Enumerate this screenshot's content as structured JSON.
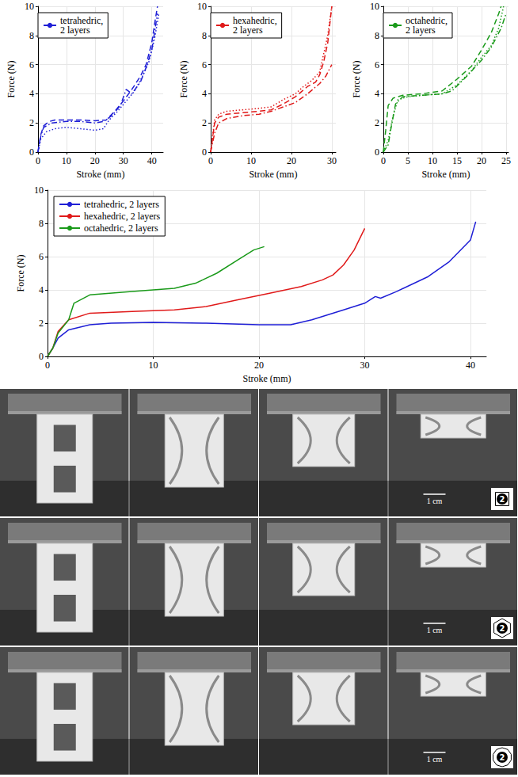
{
  "chart_data": [
    {
      "type": "line",
      "x_label": "Stroke (mm)",
      "y_label": "Force (N)",
      "xlim": [
        0,
        44
      ],
      "xticks": [
        0,
        10,
        20,
        30,
        40
      ],
      "ylim": [
        0,
        10
      ],
      "yticks": [
        0,
        2,
        4,
        6,
        8,
        10
      ],
      "grid": true,
      "legend": "upper left",
      "series": [
        {
          "name": "tetrahedric, 2 layers",
          "color": "#1f1fd6",
          "line_style": "dashed",
          "x": [
            0,
            1,
            2,
            4,
            6,
            10,
            15,
            20,
            24,
            27,
            30,
            33,
            36,
            38,
            40,
            41,
            42
          ],
          "values": [
            0,
            1.2,
            1.8,
            2.1,
            2.2,
            2.2,
            2.2,
            2.15,
            2.2,
            2.8,
            3.5,
            4.3,
            5.2,
            6.0,
            7.5,
            8.8,
            10
          ]
        },
        {
          "name": "tetrahedric, 2 layers",
          "color": "#1f1fd6",
          "line_style": "dashdot",
          "x": [
            0,
            1,
            2,
            5,
            10,
            15,
            20,
            23,
            26,
            29,
            31,
            33,
            36,
            38,
            40,
            42
          ],
          "values": [
            0,
            1.1,
            1.7,
            2.0,
            2.1,
            2.1,
            2.0,
            2.1,
            2.5,
            3.2,
            4.3,
            4.0,
            4.8,
            5.8,
            7.0,
            9.5
          ]
        },
        {
          "name": "tetrahedric, 2 layers",
          "color": "#1f1fd6",
          "line_style": "dotted",
          "x": [
            0,
            1,
            3,
            6,
            10,
            15,
            20,
            23,
            25,
            28,
            31,
            34,
            37,
            39,
            41,
            42.5
          ],
          "values": [
            0,
            0.9,
            1.4,
            1.6,
            1.7,
            1.6,
            1.5,
            1.6,
            2.2,
            2.8,
            3.5,
            4.2,
            5.3,
            6.2,
            7.8,
            9.5
          ]
        }
      ]
    },
    {
      "type": "line",
      "x_label": "Stroke (mm)",
      "y_label": "Force (N)",
      "xlim": [
        0,
        31
      ],
      "xticks": [
        0,
        10,
        20,
        30
      ],
      "ylim": [
        0,
        10
      ],
      "yticks": [
        0,
        2,
        4,
        6,
        8,
        10
      ],
      "grid": true,
      "legend": "upper left",
      "series": [
        {
          "name": "hexahedric, 2 layers",
          "color": "#e01a1a",
          "line_style": "dashed",
          "x": [
            0,
            0.5,
            1,
            2,
            4,
            8,
            12,
            15,
            18,
            21,
            24,
            26,
            27,
            28,
            29,
            30
          ],
          "values": [
            0,
            1.0,
            2.0,
            2.4,
            2.6,
            2.7,
            2.8,
            2.9,
            3.3,
            3.8,
            4.5,
            4.8,
            5.3,
            6.2,
            7.5,
            10
          ]
        },
        {
          "name": "hexahedric, 2 layers",
          "color": "#e01a1a",
          "line_style": "dotted",
          "x": [
            0,
            1,
            2,
            4,
            8,
            12,
            15,
            18,
            21,
            23,
            25,
            27,
            29,
            30
          ],
          "values": [
            0,
            2.2,
            2.6,
            2.8,
            2.9,
            3.0,
            3.1,
            3.6,
            4.0,
            4.5,
            4.9,
            5.5,
            8.0,
            10
          ]
        },
        {
          "name": "hexahedric, 2 layers",
          "color": "#e01a1a",
          "line_style": "dashdot",
          "x": [
            0,
            1,
            2,
            4,
            8,
            12,
            15,
            18,
            21,
            24,
            27,
            28.5,
            30
          ],
          "values": [
            0,
            1.3,
            2.0,
            2.3,
            2.5,
            2.6,
            2.8,
            3.1,
            3.4,
            4.0,
            4.7,
            5.2,
            6.0
          ]
        }
      ]
    },
    {
      "type": "line",
      "x_label": "Stroke (mm)",
      "y_label": "Force (N)",
      "xlim": [
        0,
        25.5
      ],
      "xticks": [
        0,
        5,
        10,
        15,
        20,
        25
      ],
      "ylim": [
        0,
        10
      ],
      "yticks": [
        0,
        2,
        4,
        6,
        8,
        10
      ],
      "grid": true,
      "legend": "upper left",
      "series": [
        {
          "name": "octahedric, 2 layers",
          "color": "#1a9a1a",
          "line_style": "dashed",
          "x": [
            0,
            0.5,
            1,
            2,
            4,
            8,
            12,
            15,
            18,
            20,
            22,
            23.5,
            24
          ],
          "values": [
            0,
            1.5,
            3.2,
            3.7,
            3.9,
            4.0,
            4.2,
            5.0,
            5.9,
            7.0,
            8.2,
            9.5,
            10
          ]
        },
        {
          "name": "octahedric, 2 layers",
          "color": "#1a9a1a",
          "line_style": "dotted",
          "x": [
            0,
            1,
            2,
            3,
            5,
            8,
            12,
            15,
            18,
            20,
            22,
            23.5,
            24.5
          ],
          "values": [
            0,
            0.8,
            2.5,
            3.6,
            3.8,
            3.9,
            4.0,
            4.6,
            5.6,
            6.5,
            7.3,
            8.5,
            10
          ]
        },
        {
          "name": "octahedric, 2 layers",
          "color": "#1a9a1a",
          "line_style": "dashdot",
          "x": [
            0,
            1,
            1.5,
            2.5,
            4,
            8,
            12,
            14,
            17,
            20,
            22,
            24,
            25
          ],
          "values": [
            0,
            0.5,
            1.5,
            3.3,
            3.8,
            3.9,
            4.0,
            4.2,
            5.2,
            6.3,
            7.2,
            8.5,
            9.5
          ]
        }
      ]
    },
    {
      "type": "line",
      "x_label": "Stroke (mm)",
      "y_label": "Force (N)",
      "xlim": [
        0,
        41.5
      ],
      "xticks": [
        0,
        10,
        20,
        30,
        40
      ],
      "ylim": [
        0,
        10
      ],
      "yticks": [
        0,
        2,
        4,
        6,
        8,
        10
      ],
      "grid": true,
      "legend": "upper left",
      "series": [
        {
          "name": "tetrahedric, 2 layers",
          "color": "#1f1fd6",
          "line_style": "solid",
          "x": [
            0,
            0.5,
            1,
            2,
            4,
            6,
            10,
            15,
            20,
            23,
            25,
            28,
            30,
            31,
            31.5,
            33,
            36,
            38,
            40,
            40.5
          ],
          "values": [
            0,
            0.5,
            1.1,
            1.6,
            1.9,
            2.0,
            2.05,
            2.0,
            1.9,
            1.9,
            2.2,
            2.8,
            3.2,
            3.6,
            3.5,
            3.9,
            4.8,
            5.7,
            7.0,
            8.1
          ]
        },
        {
          "name": "hexahedric, 2 layers",
          "color": "#e01a1a",
          "line_style": "solid",
          "x": [
            0,
            0.5,
            1,
            2,
            4,
            8,
            12,
            15,
            18,
            21,
            24,
            26,
            27,
            28,
            29,
            30
          ],
          "values": [
            0,
            0.5,
            1.5,
            2.2,
            2.6,
            2.7,
            2.8,
            3.0,
            3.4,
            3.8,
            4.2,
            4.6,
            4.9,
            5.5,
            6.4,
            7.7
          ]
        },
        {
          "name": "octahedric, 2 layers",
          "color": "#1a9a1a",
          "line_style": "solid",
          "x": [
            0,
            0.5,
            1,
            2,
            2.5,
            4,
            8,
            12,
            14,
            16,
            18,
            19.5,
            20.5
          ],
          "values": [
            0,
            0.5,
            1.4,
            2.2,
            3.2,
            3.7,
            3.9,
            4.1,
            4.4,
            5.0,
            5.8,
            6.4,
            6.6
          ]
        }
      ]
    }
  ],
  "photo_panel": {
    "rows": [
      {
        "scale_bar": "1 cm",
        "icon_label": "2"
      },
      {
        "scale_bar": "1 cm",
        "icon_label": "2"
      },
      {
        "scale_bar": "1 cm",
        "icon_label": "2"
      }
    ]
  }
}
